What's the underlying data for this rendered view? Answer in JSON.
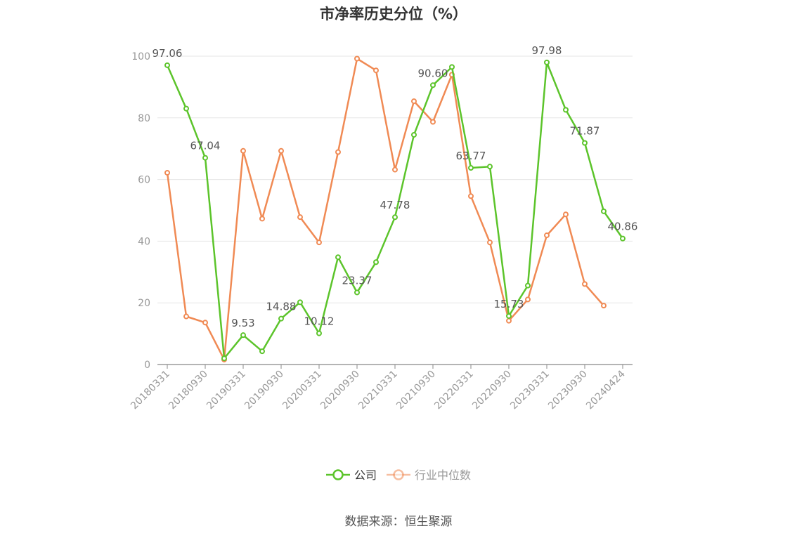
{
  "source": "数据来源：恒生聚源",
  "colors": {
    "company": "#5cc42b",
    "industry": "#f08a54",
    "grid": "#e6e6e6",
    "axis": "#888888",
    "tick_text": "#999999"
  },
  "chart_data": {
    "type": "line",
    "title": "市净率历史分位（%）",
    "xlabel": "",
    "ylabel": "",
    "ylim": [
      0,
      100
    ],
    "yticks": [
      0,
      20,
      40,
      60,
      80,
      100
    ],
    "x": [
      "20180331",
      "20180630",
      "20180930",
      "20181231",
      "20190331",
      "20190630",
      "20190930",
      "20191231",
      "20200331",
      "20200630",
      "20200930",
      "20201231",
      "20210331",
      "20210630",
      "20210930",
      "20211231",
      "20220331",
      "20220630",
      "20220930",
      "20221231",
      "20230331",
      "20230630",
      "20230930",
      "20231231",
      "20240424"
    ],
    "xtick_labels": [
      "20180331",
      "20180930",
      "20190331",
      "20190930",
      "20200331",
      "20200930",
      "20210331",
      "20210930",
      "20220331",
      "20220930",
      "20230331",
      "20230930",
      "20240424"
    ],
    "grid": true,
    "legend": "bottom-center",
    "series": [
      {
        "name": "公司",
        "values": [
          97.06,
          83.0,
          67.04,
          2.0,
          9.53,
          4.3,
          14.88,
          20.2,
          10.12,
          34.8,
          23.37,
          33.2,
          47.78,
          74.5,
          90.6,
          96.5,
          63.77,
          64.2,
          15.73,
          25.6,
          97.98,
          82.6,
          71.87,
          49.7,
          40.86
        ],
        "labels": {
          "0": "97.06",
          "2": "67.04",
          "4": "9.53",
          "6": "14.88",
          "8": "10.12",
          "10": "23.37",
          "12": "47.78",
          "14": "90.60",
          "16": "63.77",
          "18": "15.73",
          "20": "97.98",
          "22": "71.87",
          "24": "40.86"
        }
      },
      {
        "name": "行业中位数",
        "values": [
          62.2,
          15.6,
          13.6,
          1.6,
          69.3,
          47.3,
          69.3,
          47.8,
          39.6,
          68.9,
          99.2,
          95.4,
          63.2,
          85.4,
          78.7,
          94.0,
          54.6,
          39.6,
          14.2,
          21.1,
          41.9,
          48.7,
          26.1,
          19.1,
          null
        ],
        "labels": {}
      }
    ]
  }
}
